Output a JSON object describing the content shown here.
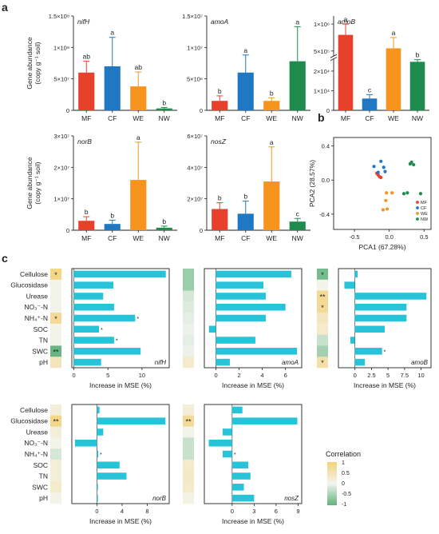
{
  "figure": {
    "panel_letters": [
      "a",
      "b",
      "c"
    ],
    "legend_title": "Correlation",
    "legend_ticks": [
      "1",
      "0.5",
      "0",
      "-0.5",
      "-1"
    ]
  },
  "chart_data": [
    {
      "id": "a-nifH",
      "type": "bar",
      "title": "nifH",
      "ylabel": "Gene abundance",
      "ylabel2": "(copy g⁻¹ soil)",
      "categories": [
        "MF",
        "CF",
        "WE",
        "NW"
      ],
      "values": [
        60000000,
        70000000,
        38000000,
        3000000
      ],
      "errors": [
        18000000,
        46000000,
        23000000,
        1500000
      ],
      "letters": [
        "ab",
        "a",
        "ab",
        "b"
      ],
      "colors": [
        "#e8412b",
        "#1f78c1",
        "#f7941d",
        "#1e8a4c"
      ],
      "ylim": [
        0,
        150000000
      ],
      "yticks": [
        {
          "v": 0,
          "t": "0"
        },
        {
          "v": 50000000,
          "t": "5×10⁷"
        },
        {
          "v": 100000000,
          "t": "1×10⁸"
        },
        {
          "v": 150000000,
          "t": "1.5×10⁸"
        }
      ]
    },
    {
      "id": "a-amoA",
      "type": "bar",
      "title": "amoA",
      "categories": [
        "MF",
        "CF",
        "WE",
        "NW"
      ],
      "values": [
        1500000,
        6000000,
        1500000,
        7800000
      ],
      "errors": [
        800000,
        2800000,
        500000,
        5500000
      ],
      "letters": [
        "b",
        "a",
        "b",
        "a"
      ],
      "colors": [
        "#e8412b",
        "#1f78c1",
        "#f7941d",
        "#1e8a4c"
      ],
      "ylim": [
        0,
        15000000
      ],
      "yticks": [
        {
          "v": 0,
          "t": "0"
        },
        {
          "v": 5000000,
          "t": "5×10⁶"
        },
        {
          "v": 10000000,
          "t": "1×10⁷"
        },
        {
          "v": 15000000,
          "t": "1.5×10⁷"
        }
      ]
    },
    {
      "id": "a-amoB",
      "type": "bar",
      "title": "amoB",
      "categories": [
        "MF",
        "CF",
        "WE",
        "NW"
      ],
      "values": [
        800000,
        6000,
        550000,
        300000
      ],
      "errors": [
        200000,
        2000,
        200000,
        40000
      ],
      "letters": [
        "a",
        "c",
        "a",
        "b"
      ],
      "colors": [
        "#e8412b",
        "#1f78c1",
        "#f7941d",
        "#1e8a4c"
      ],
      "axis_break": true,
      "yticks": [
        {
          "t": "1×10⁶"
        },
        {
          "t": "5×10⁵"
        },
        {
          "t": "2×10⁴"
        },
        {
          "t": "1×10⁴"
        },
        {
          "t": "0"
        }
      ]
    },
    {
      "id": "a-norB",
      "type": "bar",
      "title": "norB",
      "ylabel": "Gene abundance",
      "ylabel2": "(copy g⁻¹ soil)",
      "categories": [
        "MF",
        "CF",
        "WE",
        "NW"
      ],
      "values": [
        3000000,
        2000000,
        16000000,
        800000
      ],
      "errors": [
        1300000,
        1200000,
        12000000,
        500000
      ],
      "letters": [
        "b",
        "b",
        "a",
        "b"
      ],
      "colors": [
        "#e8412b",
        "#1f78c1",
        "#f7941d",
        "#1e8a4c"
      ],
      "ylim": [
        0,
        30000000
      ],
      "yticks": [
        {
          "v": 0,
          "t": "0"
        },
        {
          "v": 10000000,
          "t": "1×10⁷"
        },
        {
          "v": 20000000,
          "t": "2×10⁷"
        },
        {
          "v": 30000000,
          "t": "3×10⁷"
        }
      ]
    },
    {
      "id": "a-nosZ",
      "type": "bar",
      "title": "nosZ",
      "categories": [
        "MF",
        "CF",
        "WE",
        "NW"
      ],
      "values": [
        13500000,
        10500000,
        31000000,
        5500000
      ],
      "errors": [
        4000000,
        8000000,
        22000000,
        2000000
      ],
      "letters": [
        "b",
        "b",
        "a",
        "c"
      ],
      "colors": [
        "#e8412b",
        "#1f78c1",
        "#f7941d",
        "#1e8a4c"
      ],
      "ylim": [
        0,
        60000000
      ],
      "yticks": [
        {
          "v": 0,
          "t": "0"
        },
        {
          "v": 20000000,
          "t": "2×10⁷"
        },
        {
          "v": 40000000,
          "t": "4×10⁷"
        },
        {
          "v": 60000000,
          "t": "6×10⁷"
        }
      ]
    },
    {
      "id": "b-pca",
      "type": "scatter",
      "xlabel": "PCA1 (67.28%)",
      "ylabel": "PCA2 (28.57%)",
      "xlim": [
        -0.8,
        0.6
      ],
      "ylim": [
        -0.58,
        0.5
      ],
      "xticks": [
        {
          "v": -0.5,
          "t": "-0.5"
        },
        {
          "v": 0,
          "t": "0.0"
        },
        {
          "v": 0.5,
          "t": "0.5"
        }
      ],
      "yticks": [
        {
          "v": -0.4,
          "t": "-0.4"
        },
        {
          "v": 0,
          "t": "0.0"
        },
        {
          "v": 0.4,
          "t": "0.4"
        }
      ],
      "series": [
        {
          "name": "MF",
          "color": "#e8412b",
          "points": [
            [
              -0.18,
              0.08
            ],
            [
              -0.14,
              0.04
            ],
            [
              -0.16,
              0.06
            ],
            [
              -0.12,
              0.03
            ]
          ]
        },
        {
          "name": "CF",
          "color": "#1f78c1",
          "points": [
            [
              -0.22,
              0.16
            ],
            [
              -0.12,
              0.22
            ],
            [
              -0.08,
              0.15
            ],
            [
              -0.06,
              0.1
            ],
            [
              -0.16,
              0.09
            ]
          ]
        },
        {
          "name": "WE",
          "color": "#f7941d",
          "points": [
            [
              -0.04,
              -0.15
            ],
            [
              0.04,
              -0.15
            ],
            [
              -0.05,
              -0.24
            ],
            [
              -0.03,
              -0.34
            ],
            [
              -0.09,
              -0.35
            ]
          ]
        },
        {
          "name": "NW",
          "color": "#1e8a4c",
          "points": [
            [
              0.3,
              0.19
            ],
            [
              0.35,
              0.18
            ],
            [
              0.32,
              0.21
            ],
            [
              0.21,
              -0.16
            ],
            [
              0.26,
              -0.15
            ],
            [
              0.45,
              -0.16
            ]
          ]
        }
      ]
    },
    {
      "id": "c-nifH",
      "type": "bar",
      "orientation": "horizontal",
      "gene_label": "nifH",
      "xlabel": "Increase in MSE (%)",
      "categories": [
        "Cellulose",
        "Glucosidase",
        "Urease",
        "NO₃⁻-N",
        "NH₄⁺-N",
        "SOC",
        "TN",
        "SWC",
        "pH"
      ],
      "values": [
        13.5,
        5.8,
        4.3,
        5.9,
        9.0,
        3.7,
        5.9,
        9.8,
        4.0
      ],
      "significance": [
        "",
        "",
        "",
        "",
        "*",
        "*",
        "*",
        "",
        ""
      ],
      "xlim": [
        -0.3,
        14
      ],
      "xticks": [
        0,
        5,
        10
      ],
      "heat_values": [
        0.9,
        0.05,
        0.05,
        0.05,
        0.75,
        0.05,
        0.05,
        -0.95,
        0.45
      ],
      "heat_stars": [
        "*",
        "",
        "",
        "",
        "*",
        "",
        "",
        "**",
        ""
      ]
    },
    {
      "id": "c-amoA",
      "type": "bar",
      "orientation": "horizontal",
      "gene_label": "amoA",
      "xlabel": "Increase in MSE (%)",
      "categories": [
        "Cellulose",
        "Glucosidase",
        "Urease",
        "NO₃⁻-N",
        "NH₄⁺-N",
        "SOC",
        "TN",
        "SWC",
        "pH"
      ],
      "values": [
        6.5,
        4.1,
        4.3,
        6.0,
        4.3,
        -0.6,
        3.4,
        7.0,
        1.2
      ],
      "significance": [
        "",
        "",
        "",
        "",
        "",
        "",
        "",
        "",
        ""
      ],
      "xlim": [
        -1.0,
        7.4
      ],
      "xticks": [
        0,
        2,
        4,
        6
      ],
      "heat_values": [
        -0.6,
        -0.6,
        -0.2,
        -0.15,
        -0.1,
        -0.05,
        -0.1,
        -0.05,
        0.3
      ],
      "heat_stars": [
        "",
        "",
        "",
        "",
        "",
        "",
        "",
        "",
        ""
      ]
    },
    {
      "id": "c-amoB",
      "type": "bar",
      "orientation": "horizontal",
      "gene_label": "amoB",
      "xlabel": "Increase in MSE (%)",
      "categories": [
        "Cellulose",
        "Glucosidase",
        "Urease",
        "NO₃⁻-N",
        "NH₄⁺-N",
        "SOC",
        "TN",
        "SWC",
        "pH"
      ],
      "values": [
        0.4,
        -1.6,
        10.8,
        7.8,
        7.8,
        4.5,
        -0.7,
        4.1,
        1.5
      ],
      "significance": [
        "",
        "",
        "",
        "",
        "",
        "",
        "",
        "*",
        ""
      ],
      "xlim": [
        -2.5,
        11.5
      ],
      "xticks": [
        0,
        2.5,
        5,
        7.5,
        10
      ],
      "heat_values": [
        -0.85,
        0.05,
        0.8,
        0.75,
        0.4,
        0.3,
        -0.3,
        -0.55,
        0.6
      ],
      "heat_stars": [
        "*",
        "",
        "**",
        "*",
        "",
        "",
        "",
        "",
        "*"
      ]
    },
    {
      "id": "c-norB",
      "type": "bar",
      "orientation": "horizontal",
      "gene_label": "norB",
      "xlabel": "Increase in MSE (%)",
      "categories": [
        "Cellulose",
        "Glucosidase",
        "Urease",
        "NO₃⁻-N",
        "NH₄⁺-N",
        "SOC",
        "TN",
        "SWC",
        "pH"
      ],
      "values": [
        0.4,
        10.9,
        1.0,
        -3.5,
        0.2,
        3.6,
        4.7,
        0.15,
        0.15
      ],
      "significance": [
        "",
        "",
        "",
        "",
        "*",
        "",
        "",
        "",
        ""
      ],
      "xlim": [
        -4.0,
        11.5
      ],
      "xticks": [
        0,
        4,
        8
      ],
      "heat_values": [
        0.2,
        0.9,
        0.2,
        0.05,
        -0.2,
        0.2,
        0.2,
        0.3,
        0.05
      ],
      "heat_stars": [
        "",
        "**",
        "",
        "",
        "",
        "",
        "",
        "",
        ""
      ]
    },
    {
      "id": "c-nosZ",
      "type": "bar",
      "orientation": "horizontal",
      "gene_label": "nosZ",
      "xlabel": "Increase in MSE (%)",
      "categories": [
        "Cellulose",
        "Glucosidase",
        "Urease",
        "NO₃⁻-N",
        "NH₄⁺-N",
        "SOC",
        "TN",
        "SWC",
        "pH"
      ],
      "values": [
        1.4,
        8.9,
        -1.3,
        -3.2,
        -1.3,
        2.2,
        2.5,
        1.6,
        3.0
      ],
      "significance": [
        "",
        "",
        "",
        "",
        "*",
        "",
        "",
        "",
        ""
      ],
      "xlim": [
        -3.8,
        9.5
      ],
      "xticks": [
        0,
        3,
        6,
        9
      ],
      "heat_values": [
        0.2,
        0.75,
        0.05,
        -0.3,
        -0.3,
        0.3,
        0.35,
        0.3,
        0.1
      ],
      "heat_stars": [
        "",
        "**",
        "",
        "",
        "",
        "",
        "",
        "",
        ""
      ]
    }
  ]
}
